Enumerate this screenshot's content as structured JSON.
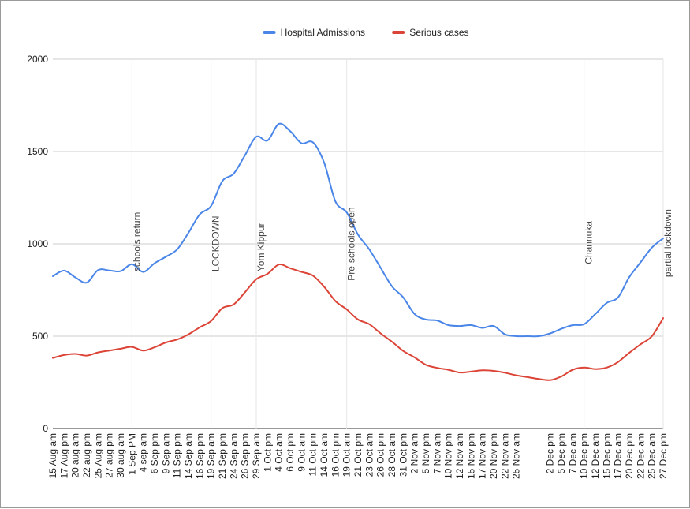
{
  "chart_data": {
    "type": "line",
    "title": "",
    "xlabel": "",
    "ylabel": "",
    "ylim": [
      0,
      2000
    ],
    "yticks": [
      0,
      500,
      1000,
      1500,
      2000
    ],
    "grid": true,
    "legend_position": "top-center",
    "x_categories": [
      "15 Aug am",
      "17 Aug pm",
      "20 aug am",
      "22 aug pm",
      "25 Aug am",
      "27 aug pm",
      "30 aug am",
      "1 Sep PM",
      "4 sep am",
      "6 Sep pm",
      "9 Sep am",
      "11 Sep pm",
      "14 Sep am",
      "16 Sep pm",
      "19 Sep am",
      "21 Sep pm",
      "24 Sep am",
      "26 Sep pm",
      "29 Sep am",
      "1 Oct pm",
      "4 Oct am",
      "6 Oct pm",
      "9 Oct am",
      "11 Oct pm",
      "14 Oct am",
      "16 Oct pm",
      "19 Oct am",
      "21 Oct pm",
      "23 Oct am",
      "26 Oct pm",
      "28 Oct am",
      "31 Oct pm",
      "2 Nov am",
      "5 Nov pm",
      "7 Nov am",
      "10 Nov pm",
      "12 Nov am",
      "15 Nov pm",
      "17 Nov am",
      "20 Nov pm",
      "22 Nov am",
      "25 Nov am",
      "",
      "",
      "2 Dec pm",
      "5 Dec pm",
      "7 Dec am",
      "10 Dec pm",
      "12 Dec am",
      "15 Dec pm",
      "17 Dec am",
      "20 Dec pm",
      "22 Dec am",
      "25 Dec am",
      "27 Dec pm"
    ],
    "series": [
      {
        "name": "Hospital Admissions",
        "color": "#4a86e8",
        "values": [
          825,
          855,
          818,
          790,
          858,
          856,
          852,
          890,
          848,
          895,
          930,
          970,
          1060,
          1160,
          1205,
          1340,
          1380,
          1480,
          1580,
          1560,
          1650,
          1610,
          1545,
          1550,
          1440,
          1230,
          1170,
          1050,
          970,
          870,
          770,
          710,
          620,
          590,
          585,
          560,
          555,
          560,
          545,
          555,
          510,
          500,
          500,
          500,
          515,
          540,
          560,
          565,
          620,
          680,
          710,
          820,
          900,
          980,
          1030
        ]
      },
      {
        "name": "Serious cases",
        "color": "#db4437",
        "values": [
          382,
          398,
          404,
          395,
          412,
          422,
          432,
          442,
          422,
          440,
          466,
          482,
          510,
          548,
          582,
          652,
          672,
          738,
          808,
          838,
          888,
          868,
          848,
          828,
          768,
          690,
          645,
          590,
          565,
          515,
          470,
          420,
          385,
          345,
          328,
          318,
          303,
          308,
          315,
          312,
          302,
          288,
          278,
          268,
          262,
          282,
          318,
          330,
          322,
          330,
          360,
          410,
          456,
          500,
          598
        ]
      }
    ],
    "annotations": [
      {
        "text": "schools return",
        "x_category": "1 Sep PM",
        "y": 850
      },
      {
        "text": "LOCKDOWN",
        "x_category": "19 Sep am",
        "y": 850
      },
      {
        "text": "Yom Kippur",
        "x_category": "29 Sep am",
        "y": 850
      },
      {
        "text": "Pre-schools open",
        "x_category": "19 Oct am",
        "y": 800
      },
      {
        "text": "Channuka",
        "x_category": "10 Dec pm",
        "y": 890
      },
      {
        "text": "partial lockdown",
        "x_category": "27 Dec pm",
        "y": 820
      }
    ]
  }
}
